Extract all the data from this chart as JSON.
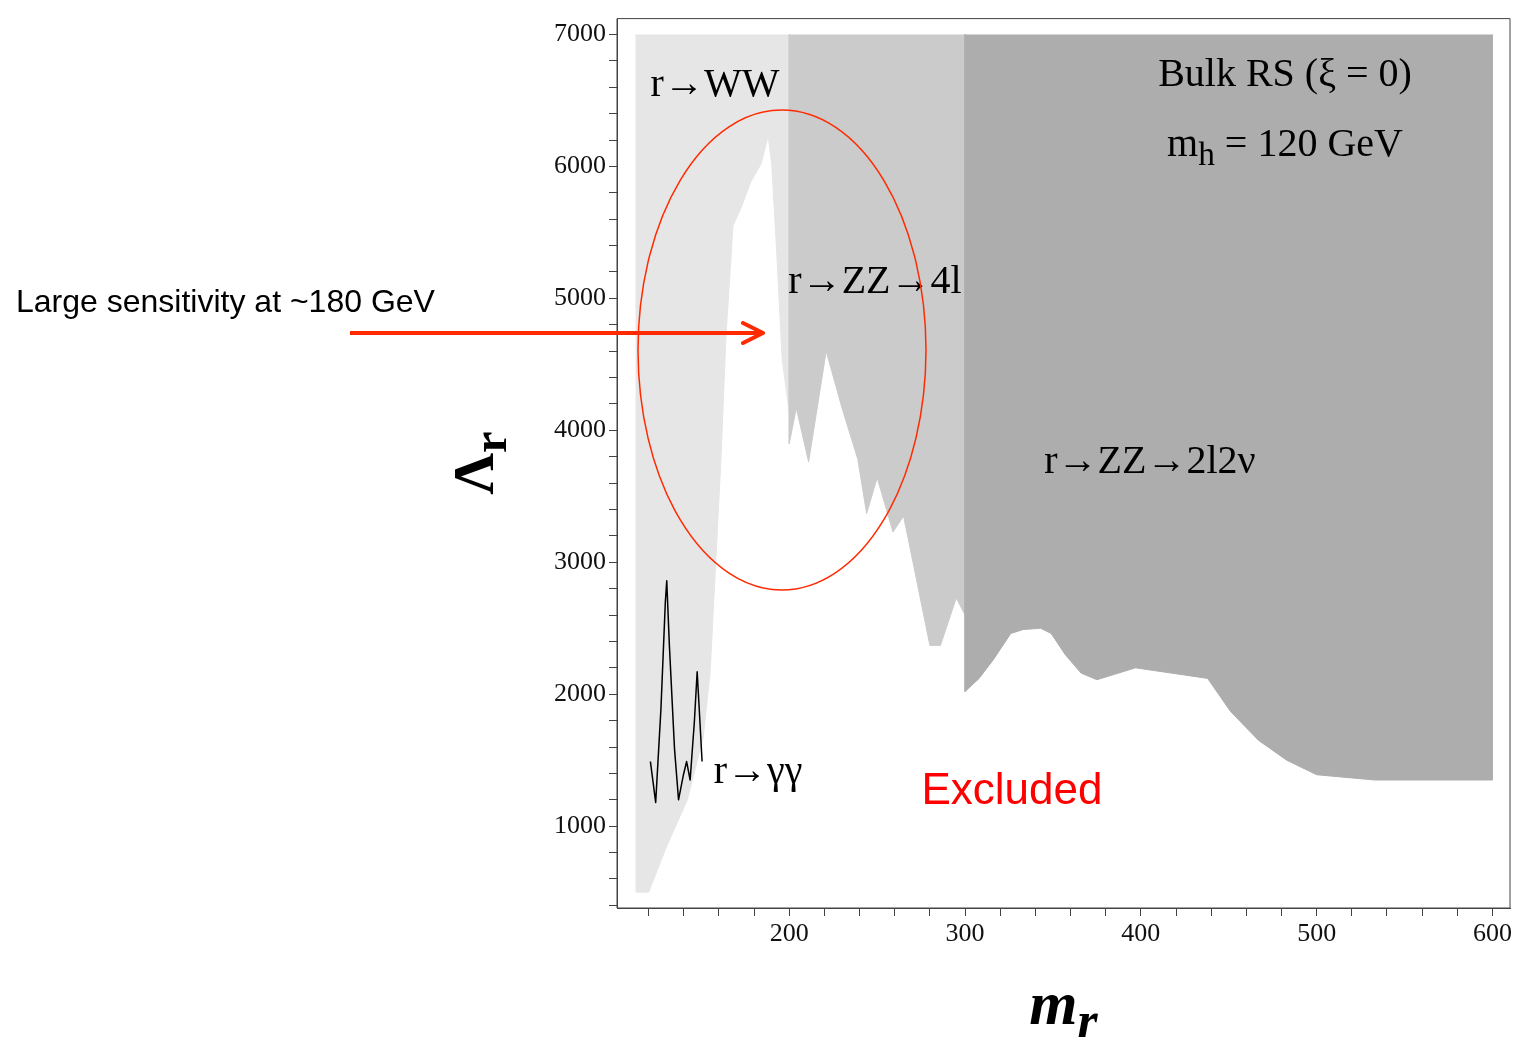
{
  "chart_data": {
    "type": "area",
    "xlabel": "m$_{r}$",
    "ylabel": "Λ$_{r}$",
    "xlim": [
      102,
      610
    ],
    "ylim": [
      380,
      7120
    ],
    "grid": false,
    "xticks": [
      {
        "value": 120,
        "label": null
      },
      {
        "value": 140,
        "label": null
      },
      {
        "value": 160,
        "label": null
      },
      {
        "value": 180,
        "label": null
      },
      200,
      {
        "value": 220,
        "label": null
      },
      {
        "value": 240,
        "label": null
      },
      {
        "value": 260,
        "label": null
      },
      {
        "value": 280,
        "label": null
      },
      300,
      {
        "value": 320,
        "label": null
      },
      {
        "value": 340,
        "label": null
      },
      {
        "value": 360,
        "label": null
      },
      {
        "value": 380,
        "label": null
      },
      400,
      {
        "value": 420,
        "label": null
      },
      {
        "value": 440,
        "label": null
      },
      {
        "value": 460,
        "label": null
      },
      {
        "value": 480,
        "label": null
      },
      500,
      {
        "value": 520,
        "label": null
      },
      {
        "value": 540,
        "label": null
      },
      {
        "value": 560,
        "label": null
      },
      {
        "value": 580,
        "label": null
      },
      600
    ],
    "yticks": [
      {
        "value": 400,
        "label": null
      },
      {
        "value": 600,
        "label": null
      },
      {
        "value": 800,
        "label": null
      },
      1000,
      {
        "value": 1200,
        "label": null
      },
      {
        "value": 1400,
        "label": null
      },
      {
        "value": 1600,
        "label": null
      },
      {
        "value": 1800,
        "label": null
      },
      2000,
      {
        "value": 2200,
        "label": null
      },
      {
        "value": 2400,
        "label": null
      },
      {
        "value": 2600,
        "label": null
      },
      {
        "value": 2800,
        "label": null
      },
      3000,
      {
        "value": 3200,
        "label": null
      },
      {
        "value": 3400,
        "label": null
      },
      {
        "value": 3600,
        "label": null
      },
      {
        "value": 3800,
        "label": null
      },
      4000,
      {
        "value": 4200,
        "label": null
      },
      {
        "value": 4400,
        "label": null
      },
      {
        "value": 4600,
        "label": null
      },
      {
        "value": 4800,
        "label": null
      },
      5000,
      {
        "value": 5200,
        "label": null
      },
      {
        "value": 5400,
        "label": null
      },
      {
        "value": 5600,
        "label": null
      },
      {
        "value": 5800,
        "label": null
      },
      6000,
      {
        "value": 6200,
        "label": null
      },
      {
        "value": 6400,
        "label": null
      },
      {
        "value": 6600,
        "label": null
      },
      {
        "value": 6800,
        "label": null
      },
      7000
    ],
    "series": [
      {
        "color": "#e6e6e6",
        "x": [
          113,
          113,
          120,
          130,
          142,
          151,
          155,
          158,
          161,
          164,
          168,
          173,
          178,
          184,
          188,
          190,
          193,
          196,
          200,
          200
        ],
        "values": [
          7000,
          500,
          500,
          840,
          1200,
          1670,
          2170,
          2960,
          3740,
          4720,
          5550,
          5700,
          5880,
          6020,
          6230,
          6020,
          5310,
          4530,
          4140,
          7000
        ]
      },
      {
        "color": "#cbcbcb",
        "x": [
          200,
          200,
          204,
          211,
          221,
          230,
          239,
          244,
          250,
          259,
          265,
          271,
          280,
          286,
          295,
          300,
          300
        ],
        "values": [
          7000,
          3900,
          4170,
          3760,
          4600,
          4170,
          3780,
          3370,
          3640,
          3230,
          3350,
          2960,
          2370,
          2370,
          2730,
          2600,
          7000
        ]
      },
      {
        "color": "#adadad",
        "x": [
          300,
          300,
          308,
          316,
          326,
          333,
          343,
          349,
          357,
          366,
          375,
          397,
          438,
          451,
          467,
          483,
          500,
          533,
          600,
          600
        ],
        "values": [
          7000,
          2020,
          2120,
          2260,
          2460,
          2490,
          2500,
          2460,
          2300,
          2160,
          2110,
          2200,
          2120,
          1870,
          1650,
          1500,
          1390,
          1350,
          1350,
          7000
        ]
      },
      {
        "type": "line",
        "color": "#000000",
        "x": [
          121,
          124,
          127,
          129.5,
          130.3,
          131.8,
          134.7,
          137,
          139.8,
          141.6,
          143.6,
          146,
          147.6,
          148.9,
          150.4
        ],
        "values": [
          1490,
          1180,
          1890,
          2700,
          2860,
          2370,
          1590,
          1200,
          1390,
          1490,
          1350,
          1790,
          2170,
          1860,
          1490
        ]
      }
    ],
    "annotations": [
      "r→WW",
      "r→ZZ→4l",
      "r→ZZ→2l2ν",
      "r→γγ",
      "Bulk RS (ξ = 0)",
      "m$_{h}$ = 120 GeV",
      "Excluded",
      "Large sensitivity at ~180 GeV"
    ]
  }
}
